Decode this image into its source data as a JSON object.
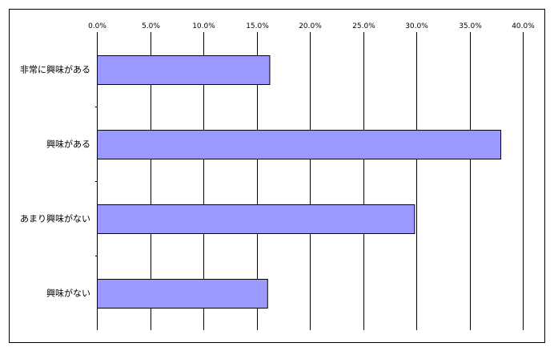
{
  "chart_data": {
    "type": "bar",
    "orientation": "horizontal",
    "categories": [
      "非常に興味がある",
      "興味がある",
      "あまり興味がない",
      "興味がない"
    ],
    "values": [
      16.2,
      37.9,
      29.8,
      16.0
    ],
    "xlim": [
      0,
      40
    ],
    "x_ticks": [
      "0.0%",
      "5.0%",
      "10.0%",
      "15.0%",
      "20.0%",
      "25.0%",
      "30.0%",
      "35.0%",
      "40.0%"
    ],
    "x_axis_position": "top",
    "grid": "vertical",
    "legend": "none",
    "bar_color": "#9999ff",
    "bar_border_color": "#000000",
    "title": "",
    "xlabel": "",
    "ylabel": ""
  }
}
